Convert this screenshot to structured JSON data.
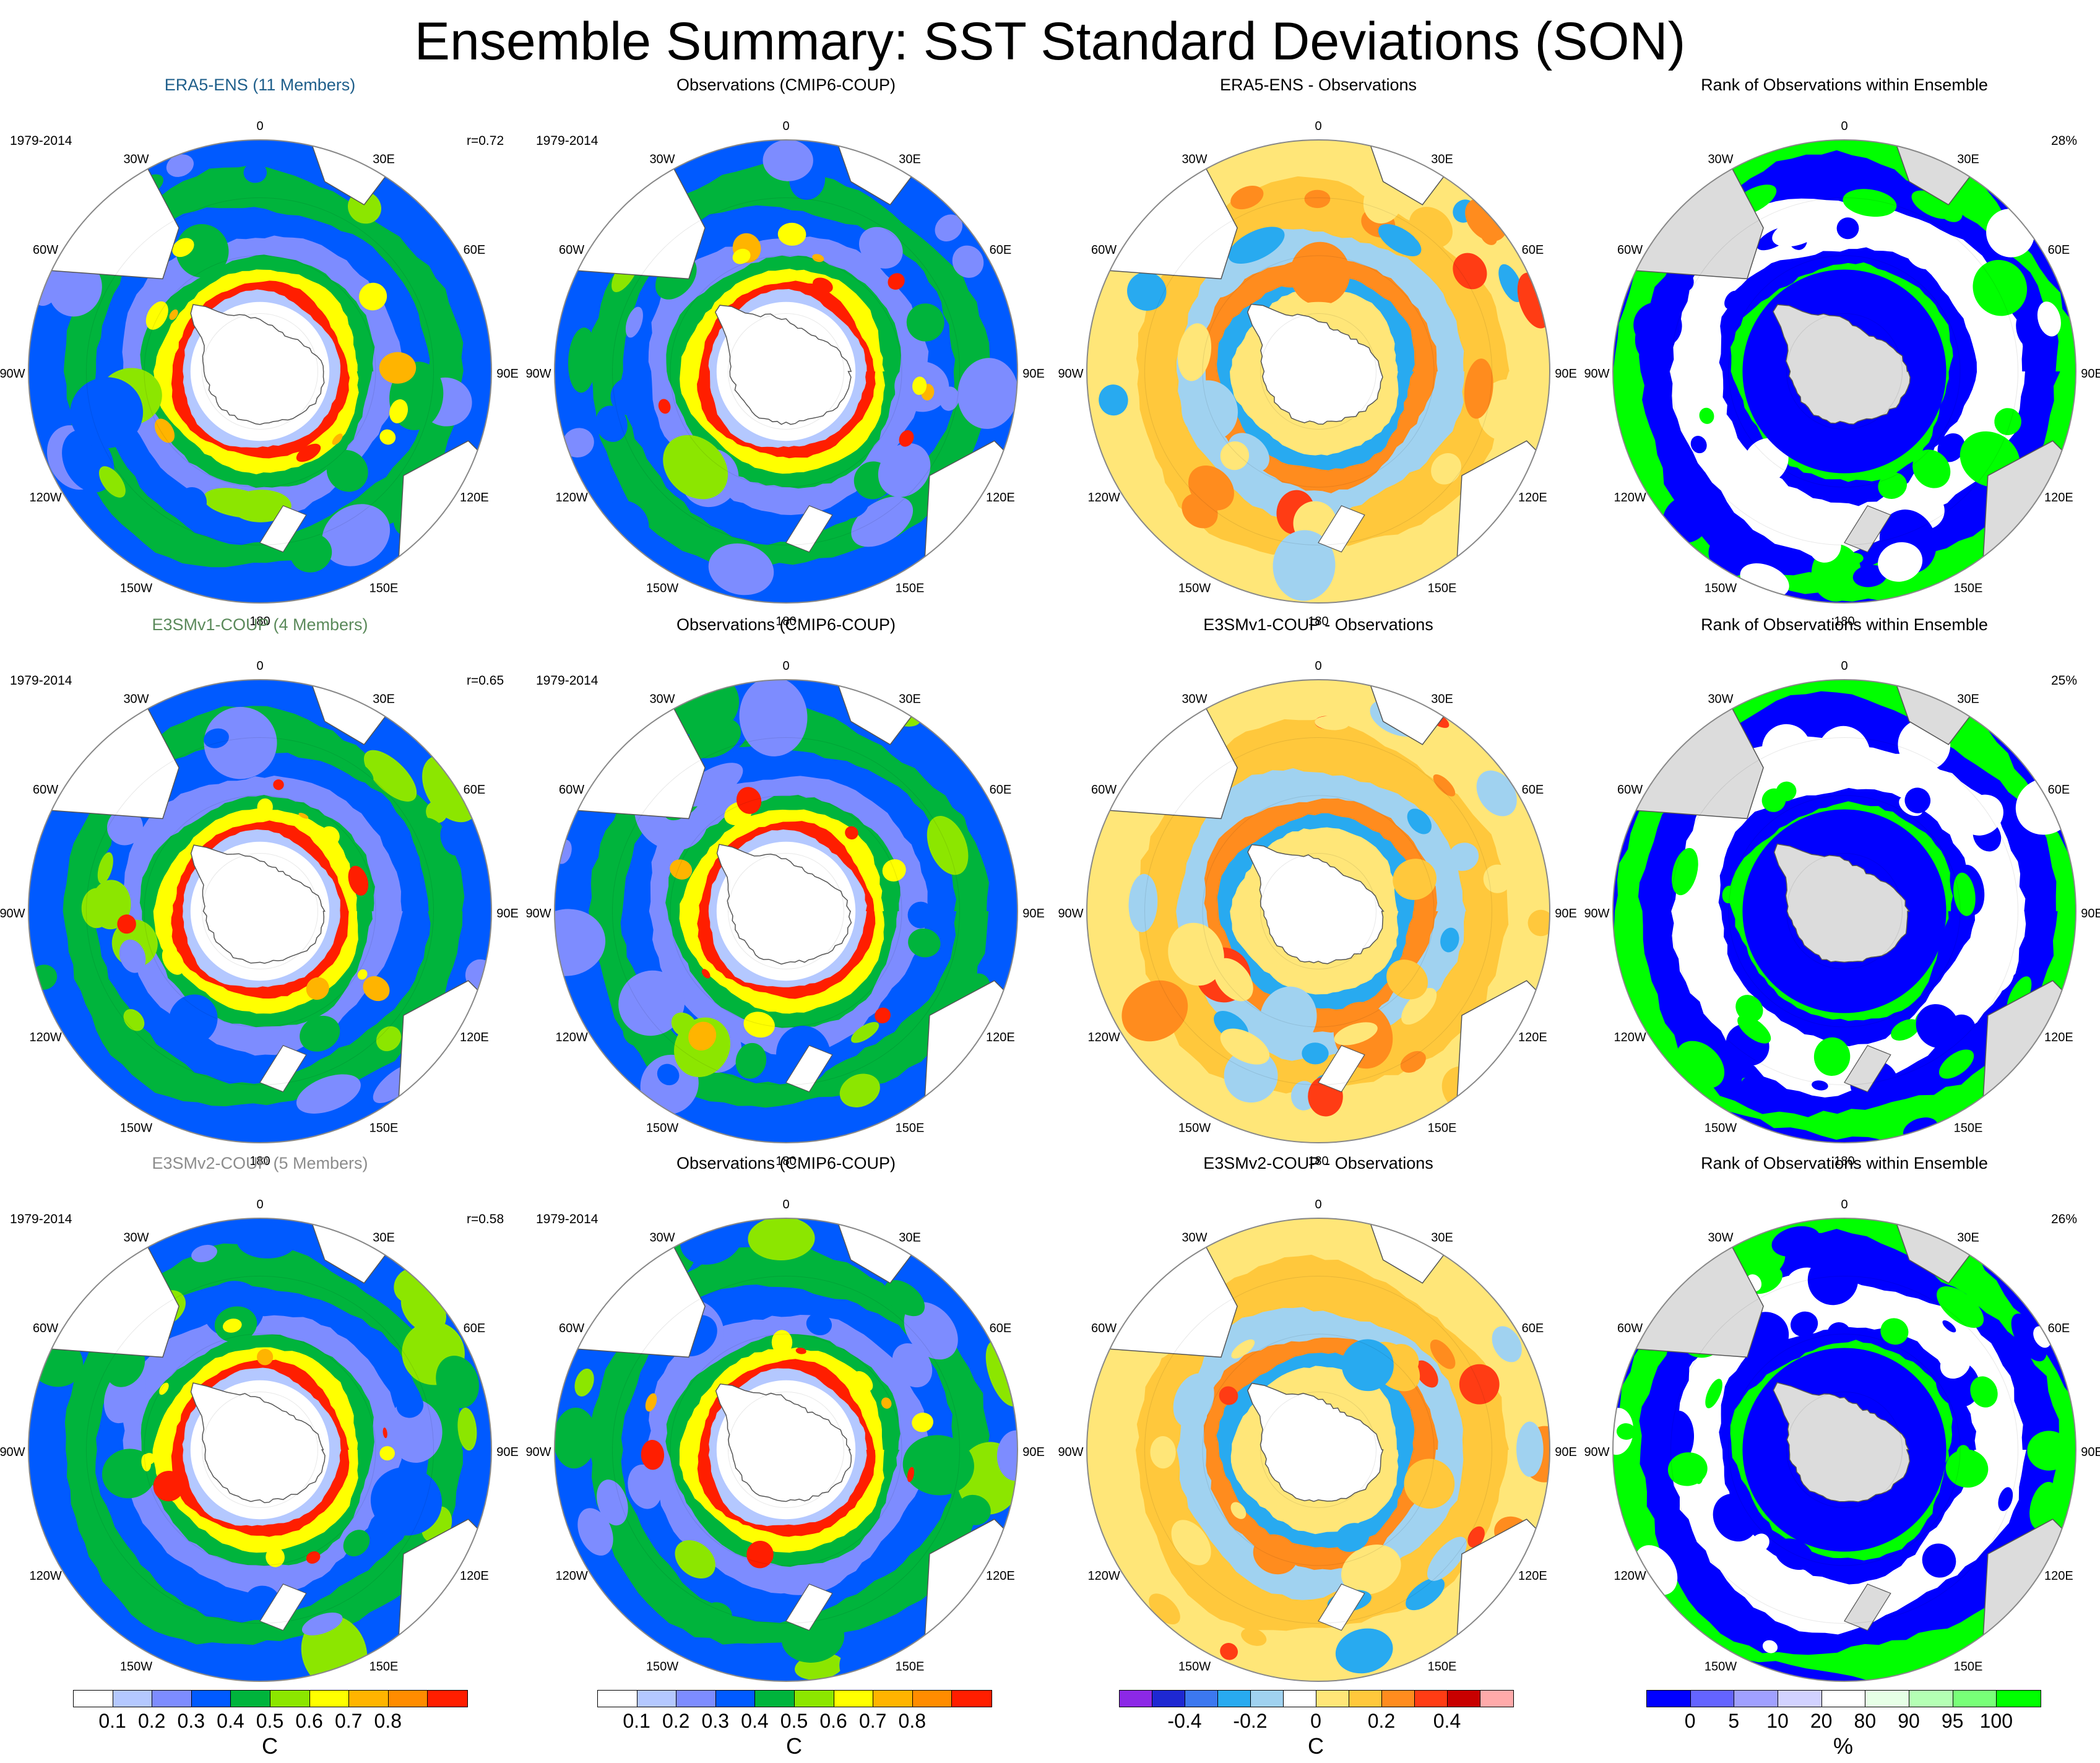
{
  "figure": {
    "title": "Ensemble Summary: SST Standard Deviations (SON)"
  },
  "lon_labels": [
    "0",
    "30E",
    "60E",
    "90E",
    "120E",
    "150E",
    "180",
    "150W",
    "120W",
    "90W",
    "60W",
    "30W"
  ],
  "colors": {
    "sd": [
      "#ffffff",
      "#b4c8ff",
      "#7d8cff",
      "#005aff",
      "#00b43c",
      "#8ce600",
      "#ffff00",
      "#ffb400",
      "#ff8c00",
      "#ff1e00"
    ],
    "diff": [
      "#8c28e6",
      "#1e28d2",
      "#3c78f0",
      "#28aaf0",
      "#a0d2f0",
      "#ffffff",
      "#ffe678",
      "#ffc83c",
      "#ff8c1e",
      "#ff3c14",
      "#c80000",
      "#ffaaaa"
    ],
    "rank": [
      "#0000ff",
      "#6464ff",
      "#a0a0ff",
      "#d2d2ff",
      "#ffffff",
      "#e6ffe6",
      "#b4ffb4",
      "#78ff78",
      "#00ff00"
    ],
    "land": "#ffffff",
    "land_rank": "#dcdcdc"
  },
  "colorbars": [
    {
      "id": "sd-1",
      "ticks": [
        "0.1",
        "0.2",
        "0.3",
        "0.4",
        "0.5",
        "0.6",
        "0.7",
        "0.8"
      ],
      "unit": "C"
    },
    {
      "id": "sd-2",
      "ticks": [
        "0.1",
        "0.2",
        "0.3",
        "0.4",
        "0.5",
        "0.6",
        "0.7",
        "0.8"
      ],
      "unit": "C"
    },
    {
      "id": "diff",
      "ticks": [
        "-0.4",
        "-0.2",
        "0",
        "0.2",
        "0.4"
      ],
      "unit": "C"
    },
    {
      "id": "rank",
      "ticks": [
        "0",
        "5",
        "10",
        "20",
        "80",
        "90",
        "95",
        "100"
      ],
      "unit": "%"
    }
  ],
  "rows": [
    {
      "panels": [
        {
          "kind": "sd",
          "title": "ERA5-ENS (11 Members)",
          "title_color": "#1f5f8b",
          "period": "1979-2014",
          "corner": "r=0.72"
        },
        {
          "kind": "sd",
          "title": "Observations (CMIP6-COUP)",
          "title_color": "#000000",
          "period": "1979-2014",
          "corner": ""
        },
        {
          "kind": "diff",
          "title": "ERA5-ENS - Observations",
          "title_color": "#000000",
          "period": "",
          "corner": ""
        },
        {
          "kind": "rank",
          "title": "Rank of Observations within Ensemble",
          "title_color": "#000000",
          "period": "",
          "corner": "28%"
        }
      ]
    },
    {
      "panels": [
        {
          "kind": "sd",
          "title": "E3SMv1-COUP (4 Members)",
          "title_color": "#5b8a5b",
          "period": "1979-2014",
          "corner": "r=0.65"
        },
        {
          "kind": "sd",
          "title": "Observations (CMIP6-COUP)",
          "title_color": "#000000",
          "period": "1979-2014",
          "corner": ""
        },
        {
          "kind": "diff",
          "title": "E3SMv1-COUP - Observations",
          "title_color": "#000000",
          "period": "",
          "corner": ""
        },
        {
          "kind": "rank",
          "title": "Rank of Observations within Ensemble",
          "title_color": "#000000",
          "period": "",
          "corner": "25%"
        }
      ]
    },
    {
      "panels": [
        {
          "kind": "sd",
          "title": "E3SMv2-COUP (5 Members)",
          "title_color": "#8c8c8c",
          "period": "1979-2014",
          "corner": "r=0.58"
        },
        {
          "kind": "sd",
          "title": "Observations (CMIP6-COUP)",
          "title_color": "#000000",
          "period": "1979-2014",
          "corner": ""
        },
        {
          "kind": "diff",
          "title": "E3SMv2-COUP - Observations",
          "title_color": "#000000",
          "period": "",
          "corner": ""
        },
        {
          "kind": "rank",
          "title": "Rank of Observations within Ensemble",
          "title_color": "#000000",
          "period": "",
          "corner": "26%"
        }
      ]
    }
  ],
  "chart_data": {
    "type": "heatmap",
    "title": "Ensemble Summary: SST Standard Deviations (SON)",
    "projection": "south polar stereographic",
    "grid": true,
    "sd_levels": [
      0.1,
      0.2,
      0.3,
      0.4,
      0.5,
      0.6,
      0.7,
      0.8
    ],
    "diff_levels": [
      -0.4,
      -0.2,
      0,
      0.2,
      0.4
    ],
    "rank_levels": [
      0,
      5,
      10,
      20,
      80,
      90,
      95,
      100
    ],
    "pattern_correlations": [
      {
        "ensemble": "ERA5-ENS",
        "r": 0.72,
        "rank_outside_pct": 28
      },
      {
        "ensemble": "E3SMv1-COUP",
        "r": 0.65,
        "rank_outside_pct": 25
      },
      {
        "ensemble": "E3SMv2-COUP",
        "r": 0.58,
        "rank_outside_pct": 26
      }
    ]
  }
}
